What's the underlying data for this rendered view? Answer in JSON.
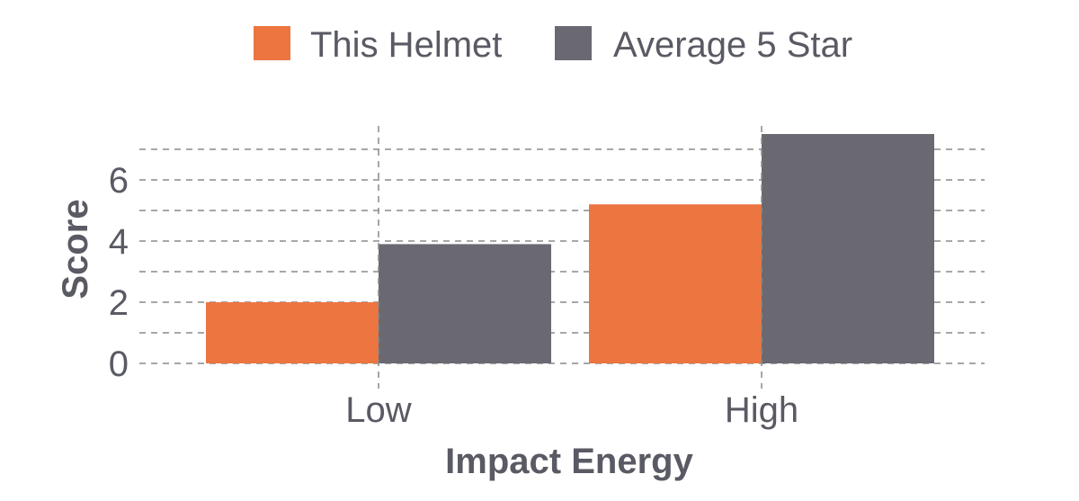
{
  "chart_data": {
    "type": "bar",
    "categories": [
      "Low",
      "High"
    ],
    "series": [
      {
        "name": "This Helmet",
        "values": [
          2.0,
          5.2
        ],
        "color": "#ec7540"
      },
      {
        "name": "Average 5 Star",
        "values": [
          3.9,
          7.5
        ],
        "color": "#6a6972"
      }
    ],
    "xlabel": "Impact Energy",
    "ylabel": "Score",
    "ylim": [
      0,
      7.5
    ],
    "yticks": [
      0,
      2,
      4,
      6
    ],
    "grid": true,
    "legend_position": "top"
  }
}
